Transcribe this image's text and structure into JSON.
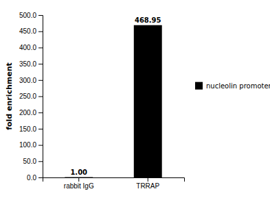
{
  "chart_data": {
    "type": "bar",
    "y_label": "fold enrichment",
    "categories": [
      "rabbit IgG",
      "TRRAP"
    ],
    "series": [
      {
        "name": "nucleolin promoter",
        "color": "#000000",
        "values": [
          1.0,
          468.95
        ],
        "value_labels": [
          "1.00",
          "468.95"
        ]
      }
    ],
    "ylim": [
      0,
      500
    ],
    "yticks": [
      {
        "value": 0,
        "label": "0.0"
      },
      {
        "value": 50,
        "label": "50.0"
      },
      {
        "value": 100,
        "label": "100.0"
      },
      {
        "value": 150,
        "label": "150.0"
      },
      {
        "value": 200,
        "label": "200.0"
      },
      {
        "value": 250,
        "label": "250.0"
      },
      {
        "value": 300,
        "label": "300.0"
      },
      {
        "value": 350,
        "label": "350.0"
      },
      {
        "value": 400,
        "label": "400.0"
      },
      {
        "value": 450,
        "label": "450.0"
      },
      {
        "value": 500,
        "label": "500.0"
      }
    ],
    "data_labels": true,
    "grid": false,
    "legend": "right"
  }
}
